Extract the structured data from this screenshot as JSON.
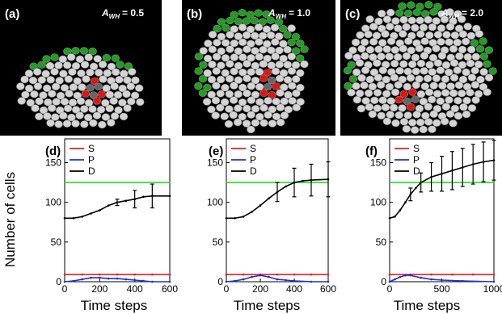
{
  "colors": {
    "S": "#e81b1b",
    "P": "#1a2fe6",
    "D": "#000000",
    "limit": "#22dd22",
    "cell": "#d4d4d4",
    "cell_edge": "#8a8a8a",
    "boundary_cells": "#1f9e1f",
    "stem_cells": "#e31414",
    "core_cells": "#666666",
    "background": "#000000"
  },
  "simulations": [
    {
      "label": "(a)",
      "awh_text": "= 0.5"
    },
    {
      "label": "(b)",
      "awh_text": "= 1.0"
    },
    {
      "label": "(c)",
      "awh_text": "= 2.0"
    }
  ],
  "awh_symbol": {
    "base": "A",
    "sub": "WH"
  },
  "shared_axes": {
    "ylabel": "Number of cells",
    "xlabel": "Time steps"
  },
  "chart_data": [
    {
      "type": "line",
      "label": "(d)",
      "xlabel": "Time steps",
      "ylabel": "Number of cells",
      "xlim": [
        0,
        600
      ],
      "ylim": [
        0,
        180
      ],
      "xticks": [
        0,
        200,
        400,
        600
      ],
      "yticks": [
        0,
        50,
        100,
        150
      ],
      "legend": "top-left",
      "hline": 125,
      "series": [
        {
          "name": "S",
          "color": "#e81b1b",
          "points": [
            [
              0,
              9
            ],
            [
              100,
              9
            ],
            [
              200,
              9
            ],
            [
              300,
              9
            ],
            [
              400,
              9
            ],
            [
              500,
              9
            ],
            [
              600,
              9
            ]
          ]
        },
        {
          "name": "P",
          "color": "#1a2fe6",
          "points": [
            [
              0,
              0
            ],
            [
              50,
              1
            ],
            [
              100,
              3
            ],
            [
              150,
              5
            ],
            [
              200,
              5
            ],
            [
              250,
              4
            ],
            [
              300,
              4
            ],
            [
              350,
              3
            ],
            [
              400,
              2
            ],
            [
              450,
              1
            ],
            [
              500,
              0
            ],
            [
              600,
              0
            ]
          ]
        },
        {
          "name": "D",
          "color": "#000000",
          "points": [
            [
              0,
              80
            ],
            [
              50,
              80
            ],
            [
              100,
              82
            ],
            [
              150,
              86
            ],
            [
              200,
              90
            ],
            [
              250,
              96
            ],
            [
              300,
              100
            ],
            [
              350,
              102
            ],
            [
              400,
              104
            ],
            [
              450,
              107
            ],
            [
              500,
              108
            ],
            [
              600,
              108
            ]
          ],
          "errorbars": [
            [
              300,
              4
            ],
            [
              400,
              11
            ],
            [
              500,
              15
            ]
          ]
        }
      ]
    },
    {
      "type": "line",
      "label": "(e)",
      "xlabel": "Time steps",
      "ylabel": "",
      "xlim": [
        0,
        600
      ],
      "ylim": [
        0,
        180
      ],
      "xticks": [
        0,
        200,
        400,
        600
      ],
      "yticks": [
        0,
        50,
        100,
        150
      ],
      "legend": "top-left",
      "hline": 125,
      "series": [
        {
          "name": "S",
          "color": "#e81b1b",
          "points": [
            [
              0,
              9
            ],
            [
              100,
              9
            ],
            [
              200,
              9
            ],
            [
              300,
              9
            ],
            [
              400,
              9
            ],
            [
              500,
              9
            ],
            [
              600,
              9
            ]
          ]
        },
        {
          "name": "P",
          "color": "#1a2fe6",
          "points": [
            [
              0,
              0
            ],
            [
              50,
              1
            ],
            [
              100,
              3
            ],
            [
              150,
              6
            ],
            [
              200,
              8
            ],
            [
              250,
              6
            ],
            [
              300,
              3
            ],
            [
              350,
              2
            ],
            [
              400,
              1
            ],
            [
              500,
              0
            ],
            [
              600,
              0
            ]
          ]
        },
        {
          "name": "D",
          "color": "#000000",
          "points": [
            [
              0,
              80
            ],
            [
              50,
              80
            ],
            [
              100,
              82
            ],
            [
              150,
              88
            ],
            [
              200,
              96
            ],
            [
              250,
              105
            ],
            [
              300,
              113
            ],
            [
              350,
              120
            ],
            [
              400,
              125
            ],
            [
              450,
              127
            ],
            [
              500,
              128
            ],
            [
              600,
              129
            ]
          ],
          "errorbars": [
            [
              300,
              12
            ],
            [
              400,
              18
            ],
            [
              500,
              20
            ],
            [
              600,
              22
            ]
          ]
        }
      ]
    },
    {
      "type": "line",
      "label": "(f)",
      "xlabel": "Time steps",
      "ylabel": "",
      "xlim": [
        0,
        1000
      ],
      "ylim": [
        0,
        180
      ],
      "xticks": [
        0,
        500,
        1000
      ],
      "yticks": [
        0,
        50,
        100,
        150
      ],
      "legend": "top-left",
      "hline": 125,
      "series": [
        {
          "name": "S",
          "color": "#e81b1b",
          "points": [
            [
              0,
              9
            ],
            [
              200,
              9
            ],
            [
              400,
              9
            ],
            [
              600,
              9
            ],
            [
              800,
              9
            ],
            [
              1000,
              9
            ]
          ]
        },
        {
          "name": "P",
          "color": "#1a2fe6",
          "points": [
            [
              0,
              0
            ],
            [
              50,
              3
            ],
            [
              100,
              6
            ],
            [
              150,
              8
            ],
            [
              200,
              8
            ],
            [
              300,
              5
            ],
            [
              400,
              3
            ],
            [
              500,
              2
            ],
            [
              700,
              1
            ],
            [
              1000,
              0
            ]
          ]
        },
        {
          "name": "D",
          "color": "#000000",
          "points": [
            [
              0,
              80
            ],
            [
              50,
              82
            ],
            [
              100,
              90
            ],
            [
              150,
              100
            ],
            [
              200,
              110
            ],
            [
              250,
              118
            ],
            [
              300,
              125
            ],
            [
              400,
              132
            ],
            [
              500,
              136
            ],
            [
              600,
              140
            ],
            [
              700,
              144
            ],
            [
              800,
              148
            ],
            [
              900,
              151
            ],
            [
              1000,
              153
            ]
          ],
          "errorbars": [
            [
              200,
              8
            ],
            [
              300,
              12
            ],
            [
              400,
              18
            ],
            [
              500,
              22
            ],
            [
              600,
              24
            ],
            [
              700,
              24
            ],
            [
              800,
              25
            ],
            [
              900,
              25
            ],
            [
              1000,
              25
            ]
          ]
        }
      ]
    }
  ]
}
